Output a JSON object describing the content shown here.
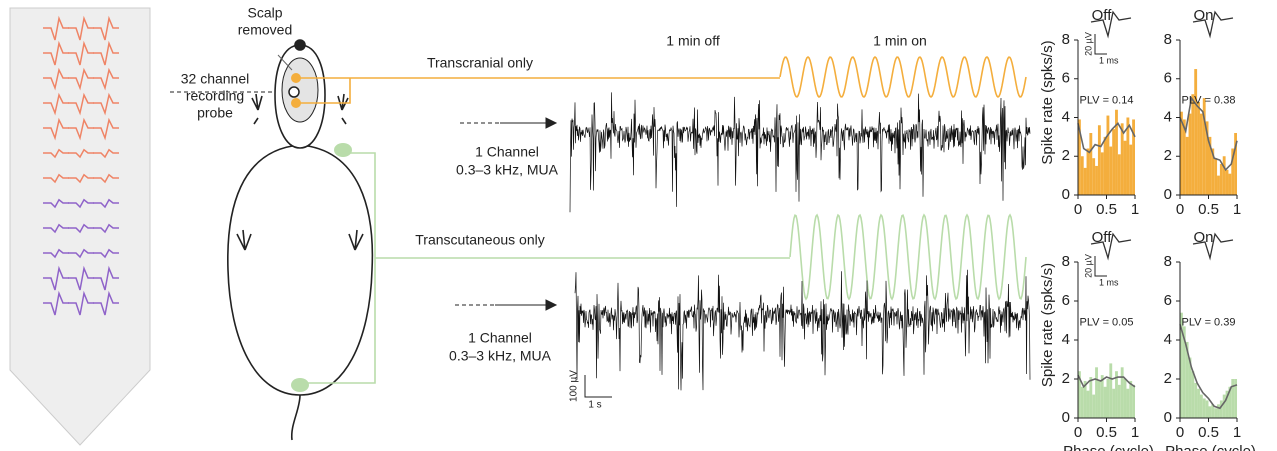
{
  "diagram": {
    "scalp_label": [
      "Scalp",
      "removed"
    ],
    "probe_label": [
      "32 channel",
      "recording",
      "probe"
    ],
    "top_stimulus": "Transcranial only",
    "bottom_stimulus": "Transcutaneous only",
    "off_period": "1 min off",
    "on_period": "1 min on",
    "top_channel": [
      "1 Channel",
      "0.3–3 kHz, MUA"
    ],
    "bottom_channel": [
      "1 Channel",
      "0.3–3 kHz, MUA"
    ],
    "trace_scale_y": "100 µV",
    "trace_scale_x": "1 s"
  },
  "chart_data": [
    {
      "type": "histogram",
      "title": "Off",
      "annotation": "PLV = 0.14",
      "ylabel": "Spike rate (spks/s)",
      "scale_y_label": "20 µV",
      "scale_x_label": "1 ms",
      "color": "#f4ae3d",
      "bins": [
        0,
        0.05,
        0.1,
        0.15,
        0.2,
        0.25,
        0.3,
        0.35,
        0.4,
        0.45,
        0.5,
        0.55,
        0.6,
        0.65,
        0.7,
        0.75,
        0.8,
        0.85,
        0.9,
        0.95,
        1
      ],
      "counts": [
        3.9,
        2.0,
        1.4,
        2.4,
        3.2,
        1.9,
        1.5,
        3.6,
        2.2,
        3.0,
        4.1,
        2.5,
        3.4,
        4.4,
        2.1,
        3.7,
        2.8,
        4.0,
        2.6,
        3.9
      ],
      "line": {
        "color": "#666666",
        "x": [
          0,
          0.1,
          0.2,
          0.3,
          0.4,
          0.5,
          0.6,
          0.7,
          0.8,
          0.9,
          1
        ],
        "values": [
          3.7,
          2.4,
          2.2,
          2.6,
          2.5,
          3.0,
          3.4,
          3.7,
          3.2,
          3.6,
          3.0
        ]
      },
      "xlim": [
        0,
        1
      ],
      "ylim": [
        0,
        8
      ],
      "xticks": [
        0,
        0.5,
        1
      ],
      "yticks": [
        0,
        2,
        4,
        6,
        8
      ]
    },
    {
      "type": "histogram",
      "title": "On",
      "annotation": "PLV = 0.38",
      "color": "#f4ae3d",
      "bins": [
        0,
        0.05,
        0.1,
        0.15,
        0.2,
        0.25,
        0.3,
        0.35,
        0.4,
        0.45,
        0.5,
        0.55,
        0.6,
        0.65,
        0.7,
        0.75,
        0.8,
        0.85,
        0.9,
        0.95,
        1
      ],
      "counts": [
        4.3,
        3.9,
        3.0,
        4.2,
        5.2,
        6.5,
        4.8,
        4.2,
        5.0,
        3.8,
        3.0,
        2.4,
        1.9,
        1.0,
        1.6,
        2.0,
        1.3,
        1.1,
        2.4,
        3.2
      ],
      "line": {
        "color": "#666666",
        "x": [
          0,
          0.1,
          0.2,
          0.3,
          0.4,
          0.5,
          0.6,
          0.7,
          0.8,
          0.9,
          1
        ],
        "values": [
          4.0,
          3.3,
          5.0,
          4.6,
          4.3,
          2.8,
          1.9,
          1.8,
          1.3,
          1.6,
          2.8
        ]
      },
      "xlim": [
        0,
        1
      ],
      "ylim": [
        0,
        8
      ],
      "xticks": [
        0,
        0.5,
        1
      ],
      "yticks": [
        0,
        2,
        4,
        6,
        8
      ]
    },
    {
      "type": "histogram",
      "title": "Off",
      "annotation": "PLV = 0.05",
      "ylabel": "Spike rate (spks/s)",
      "xlabel": "Phase (cycle)",
      "scale_y_label": "20 µV",
      "scale_x_label": "1 ms",
      "color": "#b9dcaa",
      "bins": [
        0,
        0.05,
        0.1,
        0.15,
        0.2,
        0.25,
        0.3,
        0.35,
        0.4,
        0.45,
        0.5,
        0.55,
        0.6,
        0.65,
        0.7,
        0.75,
        0.8,
        0.85,
        0.9,
        0.95,
        1
      ],
      "counts": [
        2.4,
        1.6,
        1.9,
        1.4,
        2.1,
        1.2,
        2.6,
        1.9,
        2.2,
        1.6,
        2.0,
        2.8,
        1.5,
        2.4,
        1.7,
        2.6,
        2.0,
        1.5,
        1.9,
        1.7
      ],
      "line": {
        "color": "#666666",
        "x": [
          0,
          0.1,
          0.2,
          0.3,
          0.4,
          0.5,
          0.6,
          0.7,
          0.8,
          0.9,
          1
        ],
        "values": [
          2.2,
          1.6,
          1.9,
          2.0,
          1.9,
          2.1,
          2.0,
          2.1,
          2.1,
          1.8,
          1.6
        ]
      },
      "xlim": [
        0,
        1
      ],
      "ylim": [
        0,
        8
      ],
      "xticks": [
        0,
        0.5,
        1
      ],
      "yticks": [
        0,
        2,
        4,
        6,
        8
      ]
    },
    {
      "type": "histogram",
      "title": "On",
      "annotation": "PLV = 0.39",
      "xlabel": "Phase (cycle)",
      "color": "#b9dcaa",
      "bins": [
        0,
        0.05,
        0.1,
        0.15,
        0.2,
        0.25,
        0.3,
        0.35,
        0.4,
        0.45,
        0.5,
        0.55,
        0.6,
        0.65,
        0.7,
        0.75,
        0.8,
        0.85,
        0.9,
        0.95,
        1
      ],
      "counts": [
        5.4,
        4.7,
        3.9,
        3.1,
        2.4,
        1.8,
        1.5,
        1.2,
        1.0,
        0.9,
        0.6,
        0.7,
        0.5,
        0.7,
        0.9,
        1.2,
        1.4,
        1.6,
        2.0,
        2.0
      ],
      "line": {
        "color": "#666666",
        "x": [
          0,
          0.1,
          0.2,
          0.3,
          0.4,
          0.5,
          0.6,
          0.7,
          0.8,
          0.9,
          1
        ],
        "values": [
          4.8,
          3.8,
          2.6,
          1.8,
          1.3,
          1.0,
          0.6,
          0.5,
          0.9,
          1.6,
          1.7
        ]
      },
      "xlim": [
        0,
        1
      ],
      "ylim": [
        0,
        8
      ],
      "xticks": [
        0,
        0.5,
        1
      ],
      "yticks": [
        0,
        2,
        4,
        6,
        8
      ]
    }
  ]
}
